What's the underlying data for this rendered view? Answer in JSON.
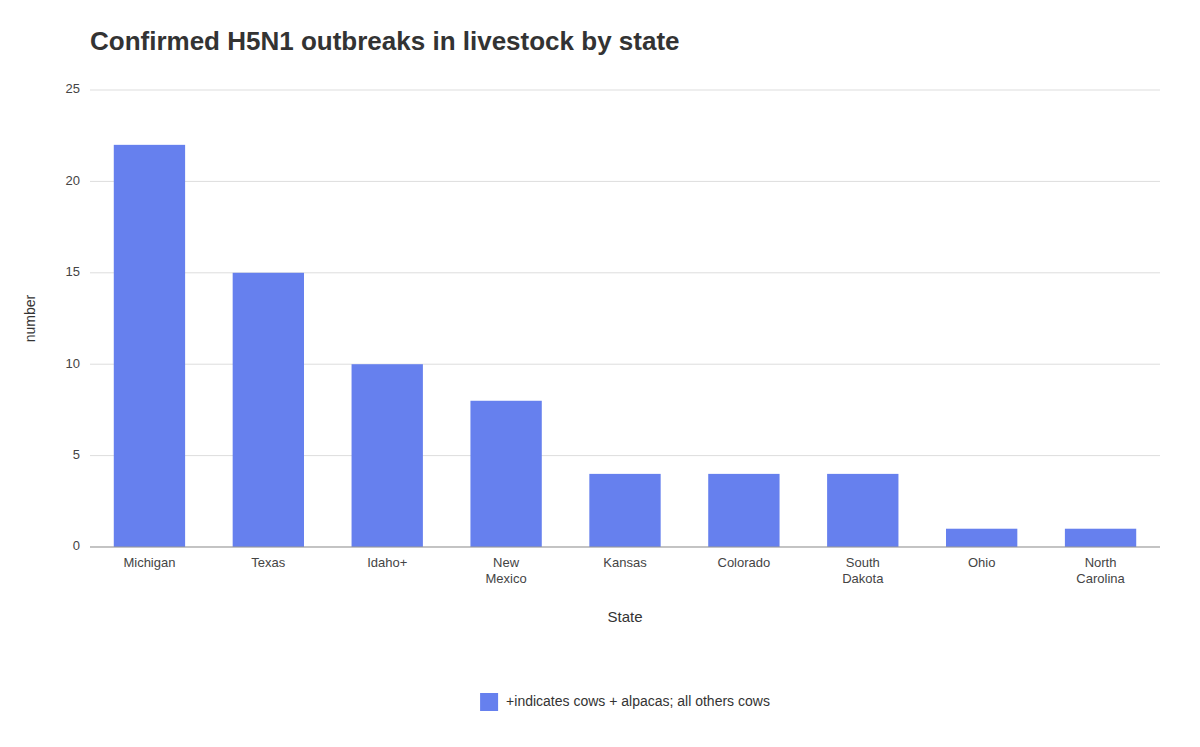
{
  "chart_data": {
    "type": "bar",
    "title": "Confirmed H5N1 outbreaks in livestock by state",
    "xlabel": "State",
    "ylabel": "number",
    "categories": [
      "Michigan",
      "Texas",
      "Idaho+",
      "New\nMexico",
      "Kansas",
      "Colorado",
      "South\nDakota",
      "Ohio",
      "North\nCarolina"
    ],
    "series": [
      {
        "name": "+indicates cows + alpacas; all others cows",
        "color": "#6680ee",
        "values": [
          22,
          15,
          10,
          8,
          4,
          4,
          4,
          1,
          1
        ]
      }
    ],
    "ylim": [
      0,
      25
    ],
    "yticks": [
      0,
      5,
      10,
      15,
      20,
      25
    ],
    "grid": true,
    "legend": "bottom"
  }
}
